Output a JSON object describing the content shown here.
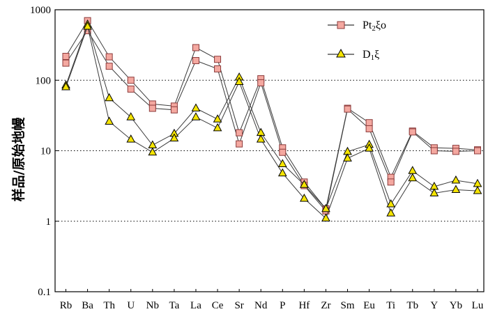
{
  "chart_data": {
    "type": "line",
    "title": "",
    "xlabel": "",
    "ylabel": "样品/原始地幔",
    "yscale": "log",
    "ylim": [
      0.1,
      1000
    ],
    "ytick_labels": [
      "0.1",
      "1",
      "10",
      "100",
      "1000"
    ],
    "grid": "dotted horizontal at 1, 10, 100",
    "legend_position": "top-right",
    "categories": [
      "Rb",
      "Ba",
      "Th",
      "U",
      "Nb",
      "Ta",
      "La",
      "Ce",
      "Sr",
      "Nd",
      "P",
      "Hf",
      "Zr",
      "Sm",
      "Eu",
      "Ti",
      "Tb",
      "Y",
      "Yb",
      "Lu"
    ],
    "series": [
      {
        "name": "Pt₂ξo",
        "marker": "square",
        "color": "#f4a8a0",
        "samples": [
          [
            218,
            700,
            215,
            100,
            46,
            43,
            290,
            198,
            18,
            105,
            11,
            3.6,
            1.5,
            40,
            25,
            4.2,
            19,
            11,
            10.8,
            10.3
          ],
          [
            175,
            505,
            158,
            75,
            40,
            38,
            190,
            145,
            12.5,
            92,
            9.5,
            3.2,
            1.4,
            39,
            20.5,
            3.6,
            18.5,
            10,
            9.8,
            10
          ]
        ]
      },
      {
        "name": "D₁ξ",
        "marker": "triangle",
        "color": "#f5e400",
        "samples": [
          [
            85,
            620,
            56,
            30,
            12,
            17.5,
            40,
            28,
            110,
            18,
            6.5,
            3.3,
            1.5,
            9.7,
            12.2,
            1.75,
            5.2,
            3.1,
            3.8,
            3.4
          ],
          [
            80,
            580,
            26,
            14.5,
            9.5,
            15,
            30,
            21,
            95,
            14.5,
            4.8,
            2.1,
            1.1,
            7.8,
            10.8,
            1.3,
            4.1,
            2.5,
            2.8,
            2.7
          ]
        ]
      }
    ]
  },
  "legend": {
    "pt": {
      "base": "Pt",
      "sub": "2",
      "rest": "ξo"
    },
    "d": {
      "base": "D",
      "sub": "1",
      "rest": "ξ"
    }
  }
}
